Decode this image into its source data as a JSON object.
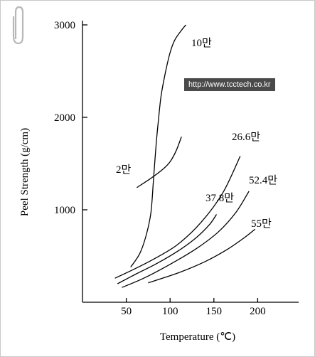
{
  "chart_data": {
    "type": "line",
    "xlabel": "Temperature (℃)",
    "ylabel": "Peel Strength (g/cm)",
    "xlim": [
      0,
      235
    ],
    "ylim": [
      0,
      3000
    ],
    "xticks": [
      50,
      100,
      150,
      200
    ],
    "yticks": [
      1000,
      2000,
      3000
    ],
    "series": [
      {
        "name": "10만",
        "x": [
          55,
          65,
          72,
          78,
          81,
          84,
          87,
          90,
          95,
          100,
          105,
          112,
          118
        ],
        "y": [
          380,
          520,
          700,
          960,
          1320,
          1700,
          2000,
          2250,
          2500,
          2700,
          2830,
          2930,
          3000
        ]
      },
      {
        "name": "2만",
        "x": [
          62,
          78,
          92,
          100,
          107,
          113
        ],
        "y": [
          1240,
          1340,
          1440,
          1520,
          1640,
          1790
        ]
      },
      {
        "name": "26.6만",
        "x": [
          37,
          55,
          80,
          108,
          135,
          160,
          180
        ],
        "y": [
          260,
          340,
          460,
          620,
          860,
          1180,
          1580
        ]
      },
      {
        "name": "37.8만",
        "x": [
          40,
          60,
          85,
          110,
          130,
          145,
          153
        ],
        "y": [
          200,
          300,
          420,
          560,
          700,
          840,
          950
        ]
      },
      {
        "name": "52.4만",
        "x": [
          45,
          70,
          100,
          130,
          155,
          175,
          190
        ],
        "y": [
          160,
          260,
          410,
          580,
          760,
          970,
          1200
        ]
      },
      {
        "name": "55만",
        "x": [
          75,
          110,
          140,
          165,
          185,
          197
        ],
        "y": [
          210,
          320,
          440,
          570,
          700,
          790
        ]
      }
    ]
  },
  "watermark": {
    "text": "http://www.tcctech.co.kr"
  }
}
